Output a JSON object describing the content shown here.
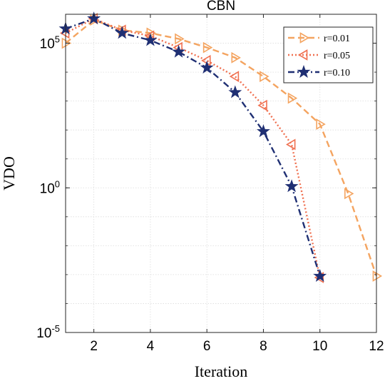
{
  "chart_data": {
    "type": "line",
    "title": "CBN",
    "xlabel": "Iteration",
    "ylabel": "VDO",
    "x_ticks": [
      "2",
      "4",
      "6",
      "8",
      "10",
      "12"
    ],
    "x_tick_values": [
      2,
      4,
      6,
      8,
      10,
      12
    ],
    "y_ticks": [
      {
        "value": 5,
        "base": "10",
        "exp": "5"
      },
      {
        "value": 0,
        "base": "10",
        "exp": "0"
      },
      {
        "value": -5,
        "base": "10",
        "exp": "-5"
      }
    ],
    "xlim": [
      1,
      12
    ],
    "ylim_log10": [
      -5,
      6
    ],
    "yscale": "log",
    "grid": "on",
    "legend_position": "top-right",
    "series": [
      {
        "name": "r=0.01",
        "color": "#F4A460",
        "line_style": "dashed",
        "marker": "triangle-right",
        "x": [
          1,
          2,
          3,
          4,
          5,
          6,
          7,
          8,
          9,
          10,
          11,
          12
        ],
        "log10_y": [
          5.0,
          5.8,
          5.45,
          5.35,
          5.15,
          4.85,
          4.5,
          3.85,
          3.1,
          2.2,
          -0.2,
          -3.05
        ]
      },
      {
        "name": "r=0.05",
        "color": "#F07050",
        "line_style": "dotted",
        "marker": "triangle-left",
        "x": [
          1,
          2,
          3,
          4,
          5,
          6,
          7,
          8,
          9,
          10
        ],
        "log10_y": [
          5.35,
          5.85,
          5.45,
          5.25,
          4.85,
          4.4,
          3.85,
          2.85,
          1.5,
          -3.1
        ]
      },
      {
        "name": "r=0.10",
        "color": "#1F2F73",
        "line_style": "dashdot",
        "marker": "star",
        "x": [
          1,
          2,
          3,
          4,
          5,
          6,
          7,
          8,
          9,
          10
        ],
        "log10_y": [
          5.5,
          5.85,
          5.35,
          5.1,
          4.7,
          4.15,
          3.3,
          1.95,
          0.05,
          -3.05
        ]
      }
    ]
  }
}
